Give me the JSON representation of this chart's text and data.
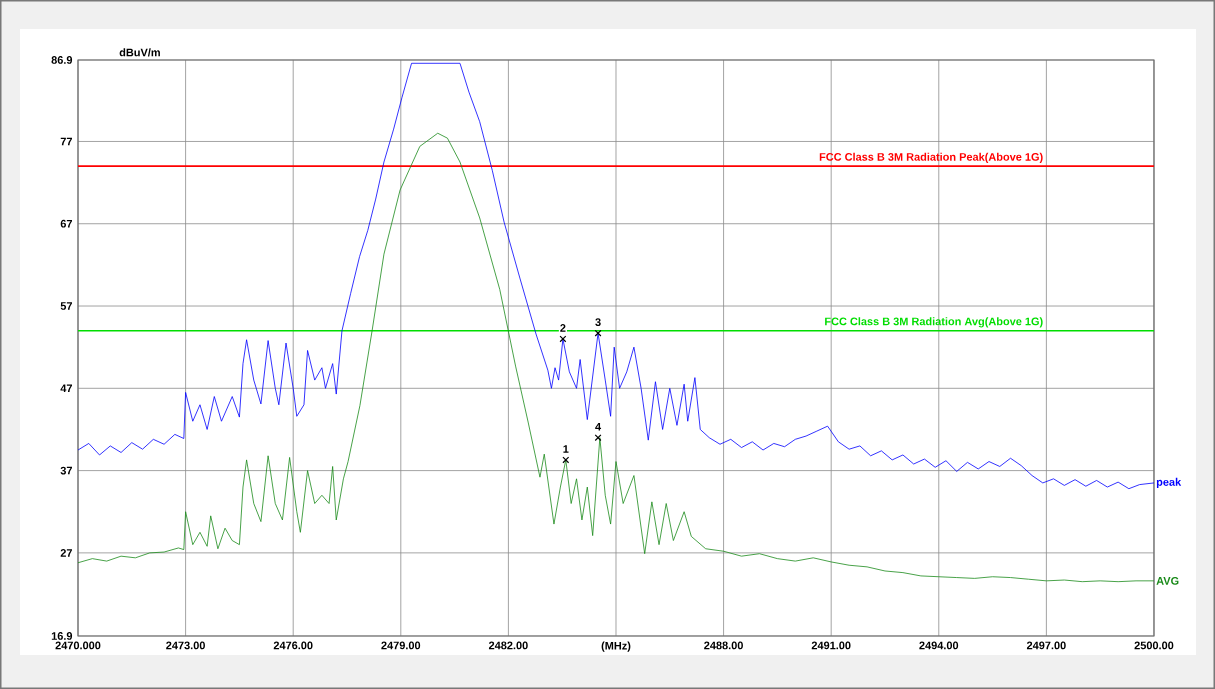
{
  "chart_data": {
    "type": "line",
    "ylabel": "dBuV/m",
    "xlim": [
      2470,
      2500
    ],
    "ylim": [
      16.9,
      86.9
    ],
    "xticks": [
      {
        "value": 2470,
        "label": "2470.000"
      },
      {
        "value": 2473,
        "label": "2473.00"
      },
      {
        "value": 2476,
        "label": "2476.00"
      },
      {
        "value": 2479,
        "label": "2479.00"
      },
      {
        "value": 2482,
        "label": "2482.00"
      },
      {
        "value": 2485,
        "label": "(MHz)"
      },
      {
        "value": 2488,
        "label": "2488.00"
      },
      {
        "value": 2491,
        "label": "2491.00"
      },
      {
        "value": 2494,
        "label": "2494.00"
      },
      {
        "value": 2497,
        "label": "2497.00"
      },
      {
        "value": 2500,
        "label": "2500.00"
      }
    ],
    "yticks": [
      16.9,
      27,
      37,
      47,
      57,
      67,
      77,
      86.9
    ],
    "grid": true,
    "series": [
      {
        "name": "peak",
        "color": "#0000ff",
        "x": [
          2470.0,
          2470.3,
          2470.6,
          2470.9,
          2471.2,
          2471.5,
          2471.8,
          2472.1,
          2472.4,
          2472.7,
          2472.95,
          2473.0,
          2473.2,
          2473.4,
          2473.6,
          2473.8,
          2474.0,
          2474.3,
          2474.5,
          2474.6,
          2474.7,
          2474.9,
          2475.1,
          2475.3,
          2475.5,
          2475.6,
          2475.8,
          2476.0,
          2476.1,
          2476.3,
          2476.4,
          2476.6,
          2476.8,
          2476.9,
          2477.1,
          2477.2,
          2477.36,
          2477.6,
          2477.85,
          2478.08,
          2478.3,
          2478.53,
          2478.8,
          2479.03,
          2479.3,
          2480.65,
          2480.9,
          2481.2,
          2481.55,
          2481.88,
          2482.32,
          2482.77,
          2483.1,
          2483.2,
          2483.3,
          2483.4,
          2483.52,
          2483.7,
          2483.9,
          2484.0,
          2484.2,
          2484.5,
          2484.7,
          2484.85,
          2484.95,
          2485.1,
          2485.3,
          2485.5,
          2485.7,
          2485.9,
          2486.1,
          2486.3,
          2486.5,
          2486.7,
          2486.9,
          2487.0,
          2487.2,
          2487.35,
          2487.6,
          2487.9,
          2488.2,
          2488.5,
          2488.8,
          2489.1,
          2489.4,
          2489.7,
          2490.0,
          2490.3,
          2490.6,
          2490.9,
          2491.2,
          2491.5,
          2491.8,
          2492.1,
          2492.4,
          2492.7,
          2493.0,
          2493.3,
          2493.6,
          2493.9,
          2494.2,
          2494.5,
          2494.8,
          2495.1,
          2495.4,
          2495.7,
          2496.0,
          2496.3,
          2496.6,
          2496.9,
          2497.2,
          2497.5,
          2497.8,
          2498.1,
          2498.4,
          2498.7,
          2499.0,
          2499.3,
          2499.6,
          2500.0
        ],
        "values": [
          39.5,
          40.3,
          38.9,
          40.0,
          39.2,
          40.4,
          39.6,
          40.8,
          40.2,
          41.4,
          40.9,
          46.5,
          43.0,
          45.0,
          42.0,
          46.0,
          43.0,
          46.0,
          43.5,
          50.0,
          52.9,
          48.0,
          45.1,
          52.8,
          47.0,
          45.0,
          52.5,
          47.0,
          43.6,
          45.0,
          51.6,
          48.0,
          49.5,
          47.0,
          50.0,
          46.3,
          54.0,
          58.5,
          63.0,
          66.2,
          70.0,
          74.5,
          78.5,
          82.3,
          86.5,
          86.5,
          83.0,
          79.4,
          73.5,
          67.2,
          60.4,
          53.6,
          49.2,
          47.0,
          49.5,
          48.0,
          53.0,
          49.0,
          47.0,
          50.5,
          43.2,
          53.7,
          48.0,
          43.6,
          52.0,
          47.0,
          49.0,
          52.0,
          47.0,
          40.7,
          47.8,
          42.0,
          47.0,
          42.5,
          47.5,
          43.0,
          48.3,
          42.0,
          41.0,
          40.2,
          40.8,
          39.8,
          40.5,
          39.5,
          40.3,
          39.9,
          40.8,
          41.2,
          41.8,
          42.4,
          40.5,
          39.6,
          40.0,
          38.8,
          39.4,
          38.3,
          38.9,
          37.8,
          38.4,
          37.4,
          38.2,
          36.9,
          38.0,
          37.2,
          38.1,
          37.5,
          38.5,
          37.6,
          36.4,
          35.5,
          36.0,
          35.2,
          35.9,
          35.1,
          35.8,
          35.0,
          35.6,
          34.8,
          35.3,
          35.5
        ]
      },
      {
        "name": "AVG",
        "color": "#1a8a1a",
        "x": [
          2470.0,
          2470.4,
          2470.8,
          2471.2,
          2471.6,
          2472.0,
          2472.4,
          2472.8,
          2472.95,
          2473.0,
          2473.2,
          2473.4,
          2473.6,
          2473.7,
          2473.9,
          2474.1,
          2474.3,
          2474.5,
          2474.6,
          2474.7,
          2474.9,
          2475.1,
          2475.3,
          2475.5,
          2475.7,
          2475.9,
          2476.1,
          2476.2,
          2476.4,
          2476.6,
          2476.8,
          2477.0,
          2477.1,
          2477.2,
          2477.4,
          2477.53,
          2477.86,
          2478.2,
          2478.53,
          2478.98,
          2479.53,
          2480.03,
          2480.3,
          2480.65,
          2481.2,
          2481.76,
          2482.2,
          2482.55,
          2482.88,
          2483.0,
          2483.27,
          2483.45,
          2483.6,
          2483.75,
          2483.9,
          2484.05,
          2484.2,
          2484.35,
          2484.55,
          2484.7,
          2484.85,
          2485.0,
          2485.2,
          2485.5,
          2485.8,
          2486.0,
          2486.2,
          2486.4,
          2486.6,
          2486.9,
          2487.1,
          2487.5,
          2488.0,
          2488.5,
          2489.0,
          2489.5,
          2490.0,
          2490.5,
          2491.0,
          2491.5,
          2492.0,
          2492.5,
          2493.0,
          2493.5,
          2494.0,
          2494.5,
          2495.0,
          2495.5,
          2496.0,
          2496.5,
          2497.0,
          2497.5,
          2498.0,
          2498.5,
          2499.0,
          2499.5,
          2500.0
        ],
        "values": [
          25.8,
          26.3,
          26.0,
          26.6,
          26.4,
          27.0,
          27.1,
          27.6,
          27.4,
          32.0,
          28.0,
          29.5,
          27.8,
          31.5,
          27.5,
          30.0,
          28.5,
          28.0,
          35.0,
          38.3,
          33.0,
          30.8,
          38.8,
          33.0,
          31.0,
          38.6,
          32.0,
          29.5,
          37.0,
          33.0,
          34.0,
          33.0,
          37.5,
          31.0,
          36.0,
          38.1,
          44.9,
          54.0,
          63.3,
          71.1,
          76.4,
          78.0,
          77.4,
          74.5,
          67.7,
          59.0,
          49.7,
          42.9,
          36.2,
          39.0,
          30.5,
          35.0,
          38.3,
          33.0,
          36.0,
          31.0,
          35.0,
          29.1,
          41.0,
          34.0,
          30.5,
          38.1,
          33.0,
          36.4,
          26.9,
          33.2,
          28.0,
          33.0,
          28.5,
          32.0,
          29.0,
          27.5,
          27.2,
          26.6,
          26.9,
          26.3,
          26.0,
          26.4,
          25.9,
          25.5,
          25.3,
          24.8,
          24.6,
          24.2,
          24.1,
          24.0,
          23.9,
          24.1,
          24.0,
          23.8,
          23.6,
          23.7,
          23.5,
          23.6,
          23.5,
          23.6,
          23.6
        ]
      },
      {
        "type": "scatter",
        "color": "#000000",
        "marker": "cross",
        "x": [
          2483.6,
          2483.52,
          2484.5,
          2484.5
        ],
        "values": [
          38.3,
          53.0,
          53.7,
          41.0
        ]
      }
    ],
    "ref_lines": [
      {
        "axis": "y",
        "value": 74,
        "label": "FCC Class B 3M Radiation Peak(Above 1G)",
        "color": "#ff0000"
      },
      {
        "axis": "y",
        "value": 54,
        "label": "FCC Class B 3M Radiation Avg(Above 1G)",
        "color": "#00dd00"
      }
    ],
    "annotations": [
      {
        "text": "1",
        "x": 2483.6,
        "y": 38.3
      },
      {
        "text": "2",
        "x": 2483.52,
        "y": 53.0
      },
      {
        "text": "3",
        "x": 2484.5,
        "y": 53.7
      },
      {
        "text": "4",
        "x": 2484.5,
        "y": 41.0
      }
    ]
  }
}
